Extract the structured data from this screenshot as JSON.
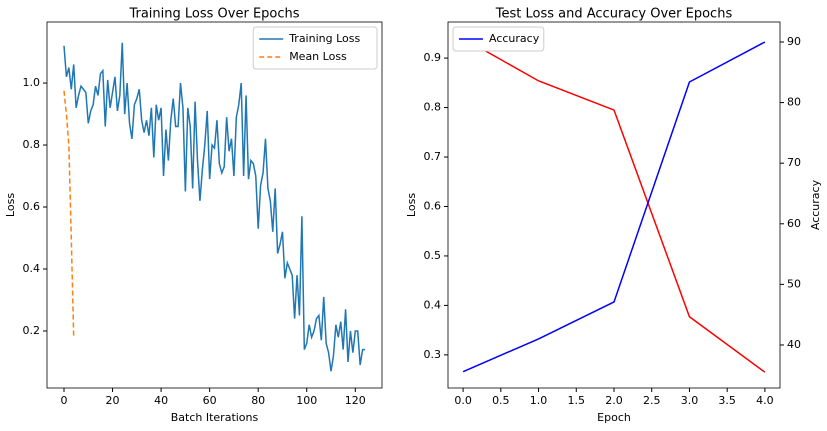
{
  "chart_data": [
    {
      "type": "line",
      "title": "Training Loss Over Epochs",
      "xlabel": "Batch Iterations",
      "ylabel": "Loss",
      "xlim": [
        -7,
        131
      ],
      "ylim": [
        0.016,
        1.197
      ],
      "xticks": [
        0,
        20,
        40,
        60,
        80,
        100,
        120
      ],
      "yticks": [
        0.2,
        0.4,
        0.6,
        0.8,
        {
          "value": 1.0,
          "label": "1.0"
        }
      ],
      "legend": "upper right",
      "series": [
        {
          "name": "Training Loss",
          "color": "#1f77b4",
          "linestyle": "solid",
          "x": [
            0,
            1,
            2,
            3,
            4,
            5,
            6,
            7,
            8,
            9,
            10,
            11,
            12,
            13,
            14,
            15,
            16,
            17,
            18,
            19,
            20,
            21,
            22,
            23,
            24,
            25,
            26,
            27,
            28,
            29,
            30,
            31,
            32,
            33,
            34,
            35,
            36,
            37,
            38,
            39,
            40,
            41,
            42,
            43,
            44,
            45,
            46,
            47,
            48,
            49,
            50,
            51,
            52,
            53,
            54,
            55,
            56,
            57,
            58,
            59,
            60,
            61,
            62,
            63,
            64,
            65,
            66,
            67,
            68,
            69,
            70,
            71,
            72,
            73,
            74,
            75,
            76,
            77,
            78,
            79,
            80,
            81,
            82,
            83,
            84,
            85,
            86,
            87,
            88,
            89,
            90,
            91,
            92,
            93,
            94,
            95,
            96,
            97,
            98,
            99,
            100,
            101,
            102,
            103,
            104,
            105,
            106,
            107,
            108,
            109,
            110,
            111,
            112,
            113,
            114,
            115,
            116,
            117,
            118,
            119,
            120,
            121,
            122,
            123,
            124
          ],
          "values": [
            1.12,
            1.02,
            1.05,
            0.98,
            1.06,
            0.92,
            0.96,
            0.99,
            0.98,
            0.97,
            0.87,
            0.91,
            0.93,
            0.99,
            0.96,
            1.03,
            1.04,
            0.86,
            1.01,
            0.92,
            0.97,
            1.02,
            0.91,
            0.96,
            1.13,
            0.9,
            1.0,
            0.87,
            0.82,
            0.93,
            0.95,
            0.98,
            0.88,
            0.84,
            0.88,
            0.83,
            0.92,
            0.76,
            0.93,
            0.88,
            0.92,
            0.7,
            0.85,
            0.75,
            0.88,
            0.95,
            0.86,
            0.86,
            1.0,
            0.92,
            0.65,
            0.92,
            0.86,
            0.66,
            0.94,
            0.75,
            0.62,
            0.72,
            0.8,
            0.91,
            0.69,
            0.8,
            0.79,
            0.88,
            0.74,
            0.71,
            0.73,
            0.89,
            0.78,
            0.82,
            0.7,
            0.89,
            0.93,
            1.0,
            0.7,
            0.96,
            0.69,
            0.75,
            0.74,
            0.7,
            0.53,
            0.67,
            0.71,
            0.82,
            0.66,
            0.62,
            0.52,
            0.66,
            0.45,
            0.48,
            0.52,
            0.37,
            0.42,
            0.4,
            0.38,
            0.24,
            0.38,
            0.25,
            0.57,
            0.14,
            0.16,
            0.22,
            0.18,
            0.2,
            0.24,
            0.25,
            0.17,
            0.31,
            0.16,
            0.13,
            0.07,
            0.12,
            0.22,
            0.18,
            0.23,
            0.14,
            0.27,
            0.1,
            0.2,
            0.13,
            0.2,
            0.2,
            0.09,
            0.14,
            0.14
          ]
        },
        {
          "name": "Mean Loss",
          "color": "#ff7f0e",
          "linestyle": "dashed",
          "x": [
            0,
            1,
            2,
            3,
            4
          ],
          "values": [
            0.975,
            0.9,
            0.8,
            0.5,
            0.18
          ]
        }
      ]
    },
    {
      "type": "line",
      "title": "Test Loss and Accuracy Over Epochs",
      "xlabel": "Epoch",
      "ylabel": "Loss",
      "y2label": "Accuracy",
      "xlim": [
        -0.2,
        4.2
      ],
      "ylim": [
        0.233,
        0.973
      ],
      "y2lim": [
        32.9,
        93.3
      ],
      "xticks": [
        {
          "value": 0,
          "label": "0.0"
        },
        0.5,
        {
          "value": 1,
          "label": "1.0"
        },
        1.5,
        {
          "value": 2,
          "label": "2.0"
        },
        2.5,
        {
          "value": 3,
          "label": "3.0"
        },
        3.5,
        {
          "value": 4,
          "label": "4.0"
        }
      ],
      "yticks": [
        0.3,
        0.4,
        0.5,
        0.6,
        0.7,
        0.8,
        0.9
      ],
      "y2ticks": [
        40,
        50,
        60,
        70,
        80,
        90
      ],
      "legend": "upper left",
      "series": [
        {
          "color": "#ff0000",
          "linestyle": "solid",
          "x": [
            0,
            1,
            2,
            3,
            4
          ],
          "values": [
            0.94,
            0.854,
            0.795,
            0.377,
            0.265
          ]
        },
        {
          "name": "Accuracy",
          "color": "#0000ff",
          "linestyle": "solid",
          "axis": "y2",
          "x": [
            0,
            1,
            2,
            3,
            4
          ],
          "values": [
            35.6,
            41.0,
            47.1,
            83.4,
            90.0
          ]
        }
      ]
    }
  ]
}
